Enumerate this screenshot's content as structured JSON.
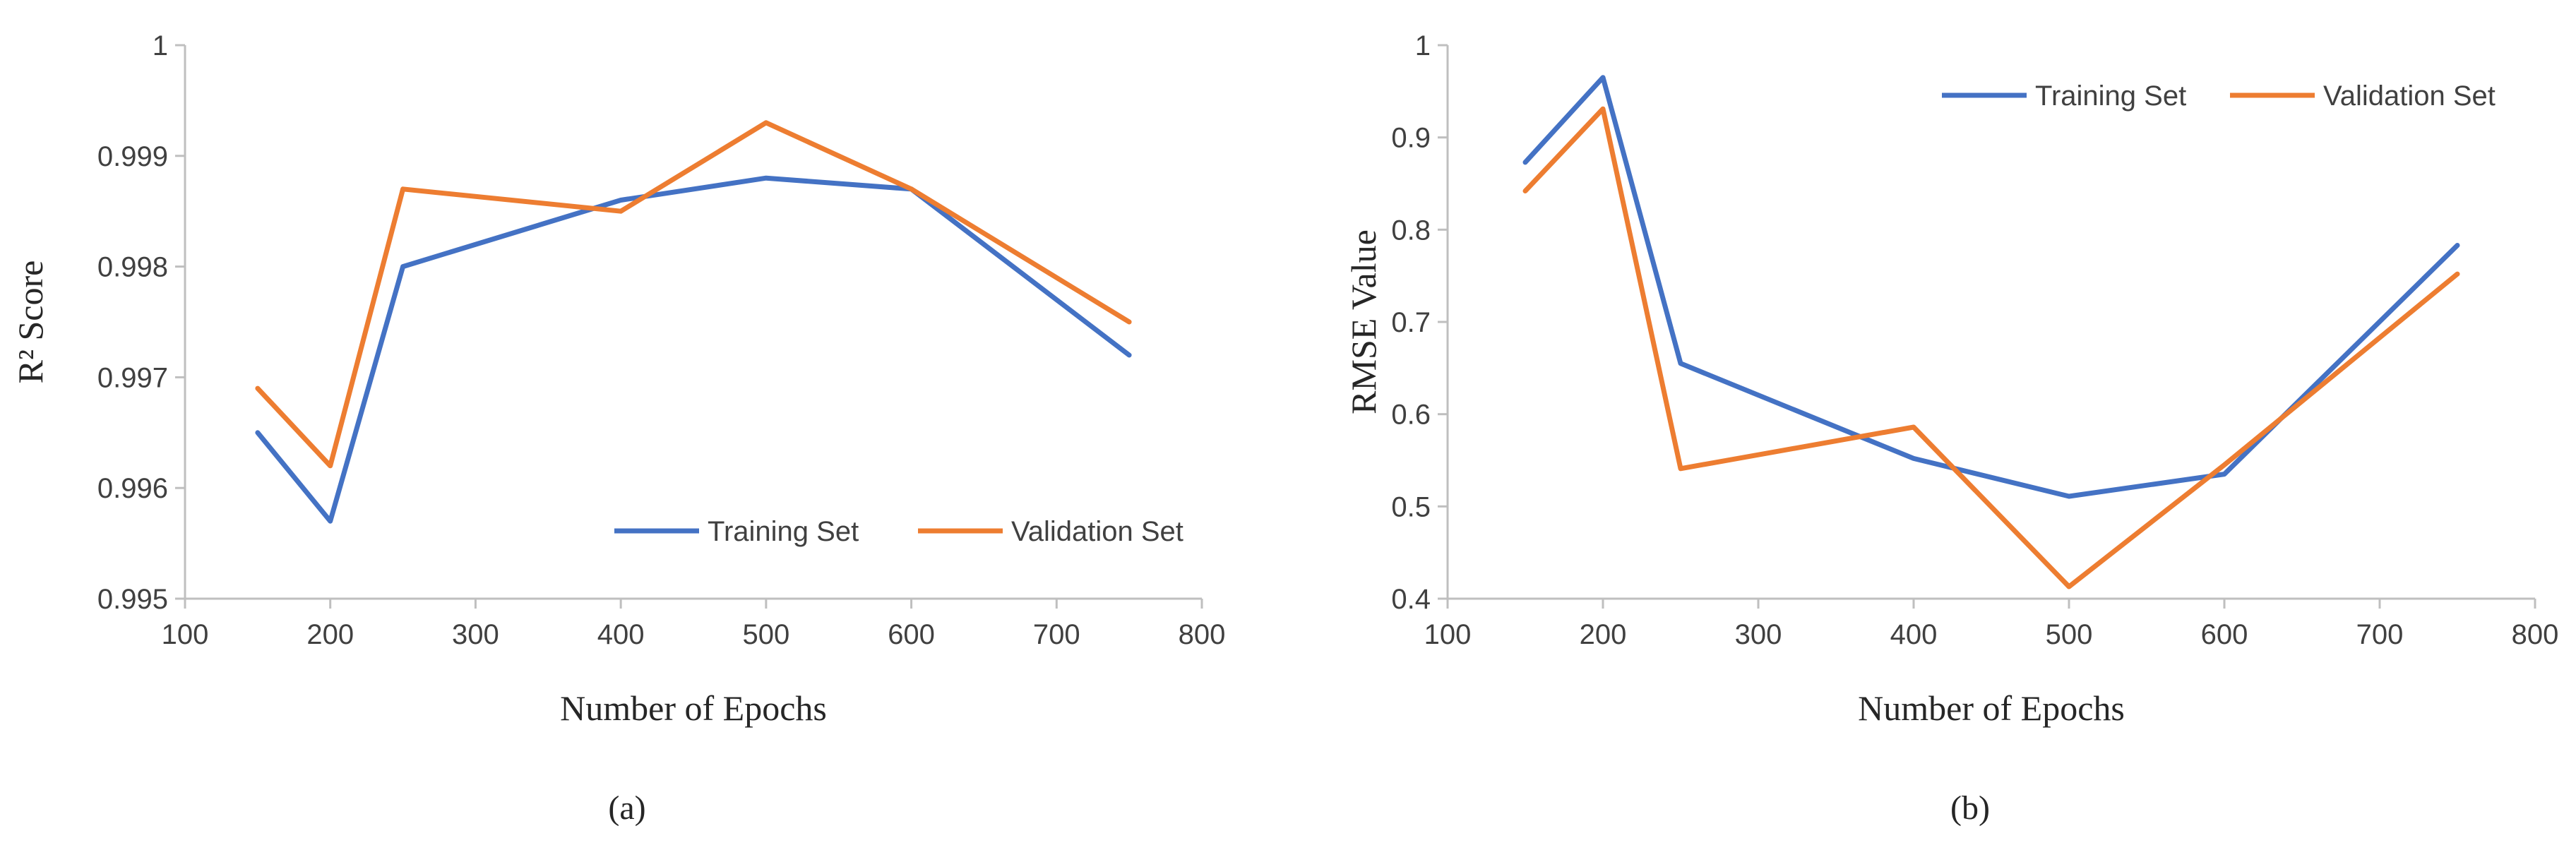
{
  "chart_data": [
    {
      "type": "line",
      "panel_label": "(a)",
      "xlabel": "Number of Epochs",
      "ylabel": "R² Score",
      "xlim": [
        100,
        800
      ],
      "ylim": [
        0.995,
        1
      ],
      "xticks": [
        100,
        200,
        300,
        400,
        500,
        600,
        700,
        800
      ],
      "xtick_labels": [
        "100",
        "200",
        "300",
        "400",
        "500",
        "600",
        "700",
        "800"
      ],
      "yticks": [
        0.995,
        0.996,
        0.997,
        0.998,
        0.999,
        1
      ],
      "ytick_labels": [
        "0.995",
        "0.996",
        "0.997",
        "0.998",
        "0.999",
        "1"
      ],
      "grid": false,
      "legend_position": "bottom-right",
      "x": [
        150,
        200,
        250,
        400,
        500,
        600,
        750
      ],
      "series": [
        {
          "name": "Training Set",
          "color": "#4472C4",
          "values": [
            0.9965,
            0.9957,
            0.998,
            0.9986,
            0.9988,
            0.9987,
            0.9972
          ]
        },
        {
          "name": "Validation Set",
          "color": "#ED7D31",
          "values": [
            0.9969,
            0.9962,
            0.9987,
            0.9985,
            0.9993,
            0.9987,
            0.9975
          ]
        }
      ]
    },
    {
      "type": "line",
      "panel_label": "(b)",
      "xlabel": "Number of Epochs",
      "ylabel": "RMSE Value",
      "xlim": [
        100,
        800
      ],
      "ylim": [
        0.4,
        1
      ],
      "xticks": [
        100,
        200,
        300,
        400,
        500,
        600,
        700,
        800
      ],
      "xtick_labels": [
        "100",
        "200",
        "300",
        "400",
        "500",
        "600",
        "700",
        "800"
      ],
      "yticks": [
        0.4,
        0.5,
        0.6,
        0.7,
        0.8,
        0.9,
        1
      ],
      "ytick_labels": [
        "0.4",
        "0.5",
        "0.6",
        "0.7",
        "0.8",
        "0.9",
        "1"
      ],
      "grid": false,
      "legend_position": "top-right",
      "x": [
        150,
        200,
        250,
        400,
        500,
        600,
        750
      ],
      "series": [
        {
          "name": "Training Set",
          "color": "#4472C4",
          "values": [
            0.873,
            0.965,
            0.655,
            0.552,
            0.511,
            0.535,
            0.783
          ]
        },
        {
          "name": "Validation Set",
          "color": "#ED7D31",
          "values": [
            0.842,
            0.931,
            0.541,
            0.586,
            0.413,
            0.545,
            0.752
          ]
        }
      ]
    }
  ]
}
